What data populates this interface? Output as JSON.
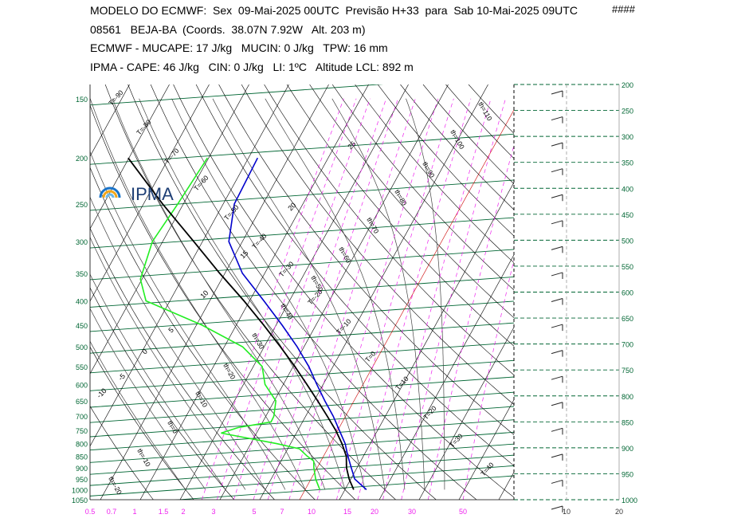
{
  "header": {
    "line1": "MODELO DO ECMWF:  Sex  09-Mai-2025 00UTC  Previsão H+33  para  Sab 10-Mai-2025 09UTC",
    "marks": "####",
    "line2": "08561   BEJA-BA  (Coords.  38.07N 7.92W   Alt. 203 m)",
    "line3": "ECMWF - MUCAPE: 17 J/kg   MUCIN: 0 J/kg   TPW: 16 mm",
    "line4": "IPMA - CAPE: 46 J/kg   CIN: 0 J/kg   LI: 1ºC   Altitude LCL: 892 m"
  },
  "logo_text": "IPMA",
  "chart_data": {
    "type": "line",
    "left_pressure_ticks": [
      "150",
      "200",
      "250",
      "300",
      "350",
      "400",
      "450",
      "500",
      "550",
      "600",
      "650",
      "700",
      "750",
      "800",
      "850",
      "900",
      "950",
      "1000",
      "1050"
    ],
    "right_pressure_ticks": [
      "200",
      "250",
      "300",
      "350",
      "400",
      "450",
      "500",
      "550",
      "600",
      "650",
      "700",
      "750",
      "800",
      "850",
      "900",
      "950",
      "1000"
    ],
    "mixing_ratio_labels": [
      "0.5",
      "0.7",
      "1",
      "1.5",
      "2",
      "3",
      "5",
      "7",
      "10",
      "15",
      "20",
      "30",
      "50"
    ],
    "wind_speed_ticks": [
      "10",
      "20"
    ],
    "isotherm_labels": [
      "T=-90",
      "T=-80",
      "T=-70",
      "T=-60",
      "T=-50",
      "T=-40",
      "T=-30",
      "T=-20",
      "T=-10",
      "T=0",
      "T=10",
      "T=20",
      "T=30",
      "T=40"
    ],
    "theta_labels": [
      "th=110",
      "th=100",
      "th=90",
      "th=80",
      "th=70",
      "th=60",
      "th=50",
      "th=40",
      "th=30",
      "th=20",
      "th=10",
      "th=0",
      "th=-10",
      "th=-20"
    ],
    "moist_adiabat_labels": [
      "25",
      "20",
      "15",
      "10",
      "5",
      "0",
      "-5",
      "-10"
    ],
    "temperature_profile": {
      "pressure": [
        1000,
        950,
        900,
        850,
        800,
        750,
        700,
        650,
        600,
        550,
        500,
        450,
        400,
        350,
        300,
        250,
        200
      ],
      "temp_c": [
        15.4,
        11.0,
        8.6,
        6.1,
        3.7,
        0.4,
        -3.1,
        -7.3,
        -11.6,
        -16.1,
        -21.7,
        -28.5,
        -36.4,
        -45.6,
        -53.4,
        -57.2,
        -57.7
      ]
    },
    "dewpoint_profile": {
      "pressure": [
        1000,
        950,
        900,
        870,
        850,
        820,
        800,
        760,
        740,
        720,
        700,
        650,
        600,
        550,
        500,
        450,
        400,
        360,
        300,
        250,
        200
      ],
      "dewpoint_c": [
        3.7,
        1.2,
        -0.8,
        -1.8,
        -4.1,
        -7.1,
        -13.4,
        -28.9,
        -25.4,
        -17.9,
        -18.0,
        -19.6,
        -24.6,
        -27.8,
        -35.4,
        -48.6,
        -66.0,
        -70.4,
        -72.6,
        -71.4,
        -70.3
      ]
    },
    "parcel_profile": {
      "pressure": [
        1000,
        950,
        900,
        850,
        800,
        750,
        700,
        650,
        600,
        550,
        500,
        450,
        400,
        350,
        300,
        250,
        200
      ],
      "temp_c": [
        12.2,
        9.6,
        7.4,
        5.7,
        2.9,
        -0.5,
        -4.6,
        -9.1,
        -14.1,
        -19.6,
        -25.9,
        -33.1,
        -41.4,
        -51.3,
        -62.2,
        -75.2,
        -90.2
      ]
    },
    "wind_barbs_pressure": [
      200,
      250,
      300,
      350,
      400,
      450,
      500,
      550,
      600,
      650,
      700,
      750,
      800,
      850,
      900,
      950,
      1000
    ],
    "colors": {
      "temperature": "#0000cc",
      "dewpoint": "#22ee22",
      "parcel": "#000000",
      "isobars": "#006633",
      "isotherms": "#000000",
      "dry_adiabats": "#000000",
      "moist_adiabats": "#444444",
      "mixing_ratio": "#ee22ee",
      "axis_labels": "#006633",
      "zero_isotherm": "#cc0000"
    }
  }
}
